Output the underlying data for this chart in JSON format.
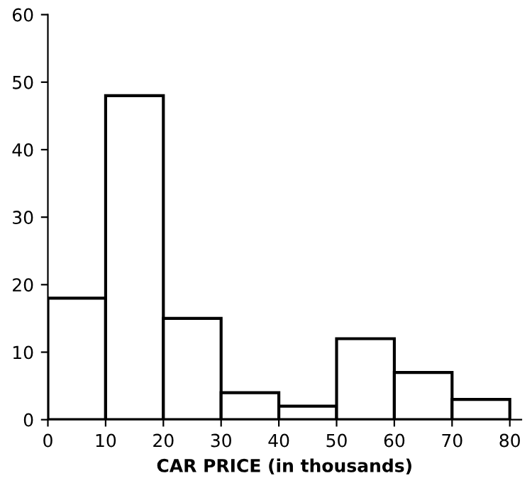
{
  "chart_data": {
    "type": "histogram",
    "xlabel": "CAR PRICE (in thousands)",
    "bins": [
      0,
      10,
      20,
      30,
      40,
      50,
      60,
      70,
      80
    ],
    "values": [
      18,
      48,
      15,
      4,
      2,
      12,
      7,
      3
    ],
    "color": "#ffffff",
    "xlim": [
      0,
      82
    ],
    "ylim": [
      0,
      60
    ],
    "xticks": [
      0,
      10,
      20,
      30,
      40,
      50,
      60,
      70,
      80
    ],
    "yticks": [
      0,
      10,
      20,
      30,
      40,
      50,
      60
    ],
    "grid": false
  }
}
